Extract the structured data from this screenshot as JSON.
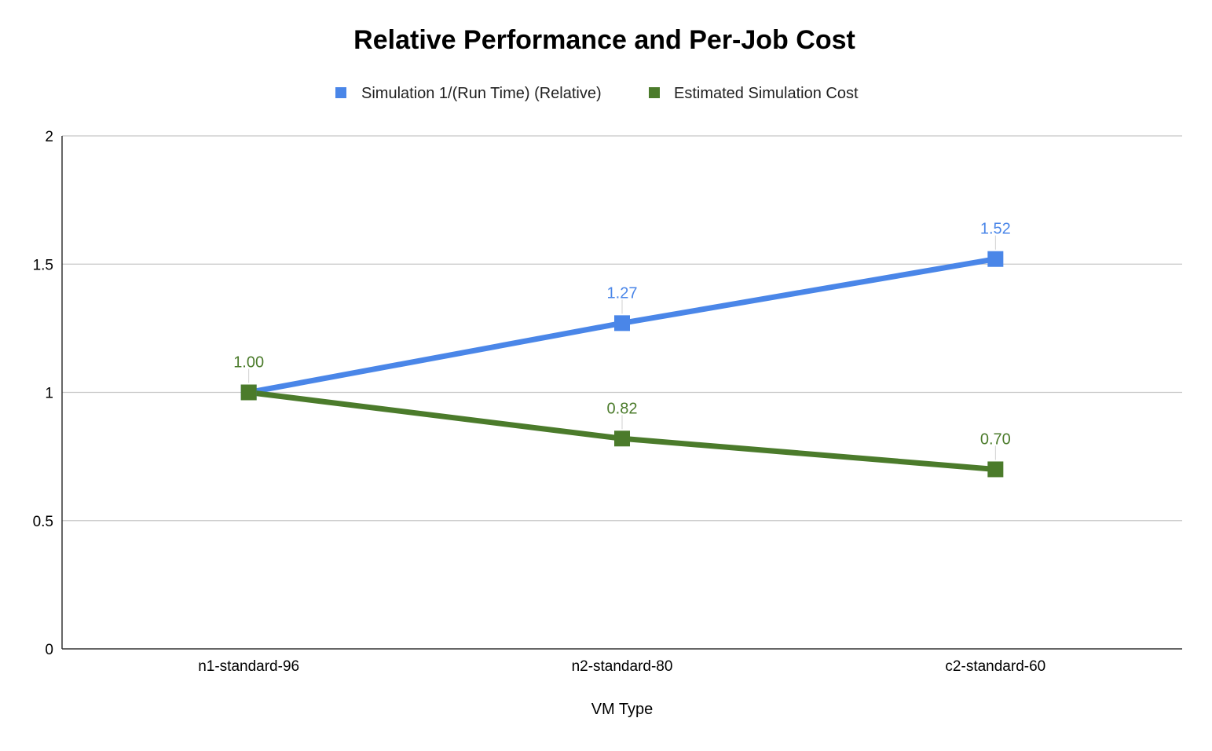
{
  "chart_data": {
    "type": "line",
    "title": "Relative Performance and Per-Job Cost",
    "xlabel": "VM Type",
    "ylabel": "",
    "categories": [
      "n1-standard-96",
      "n2-standard-80",
      "c2-standard-60"
    ],
    "ylim": [
      0,
      2
    ],
    "yticks": [
      "0",
      "0.5",
      "1",
      "1.5",
      "2"
    ],
    "grid": true,
    "legend_position": "top",
    "series": [
      {
        "name": "Simulation 1/(Run Time) (Relative)",
        "color": "#4a86e8",
        "values": [
          1.0,
          1.27,
          1.52
        ],
        "labels": [
          "",
          "1.27",
          "1.52"
        ]
      },
      {
        "name": "Estimated Simulation Cost",
        "color": "#4b7b2b",
        "values": [
          1.0,
          0.82,
          0.7
        ],
        "labels": [
          "1.00",
          "0.82",
          "0.70"
        ]
      }
    ]
  }
}
